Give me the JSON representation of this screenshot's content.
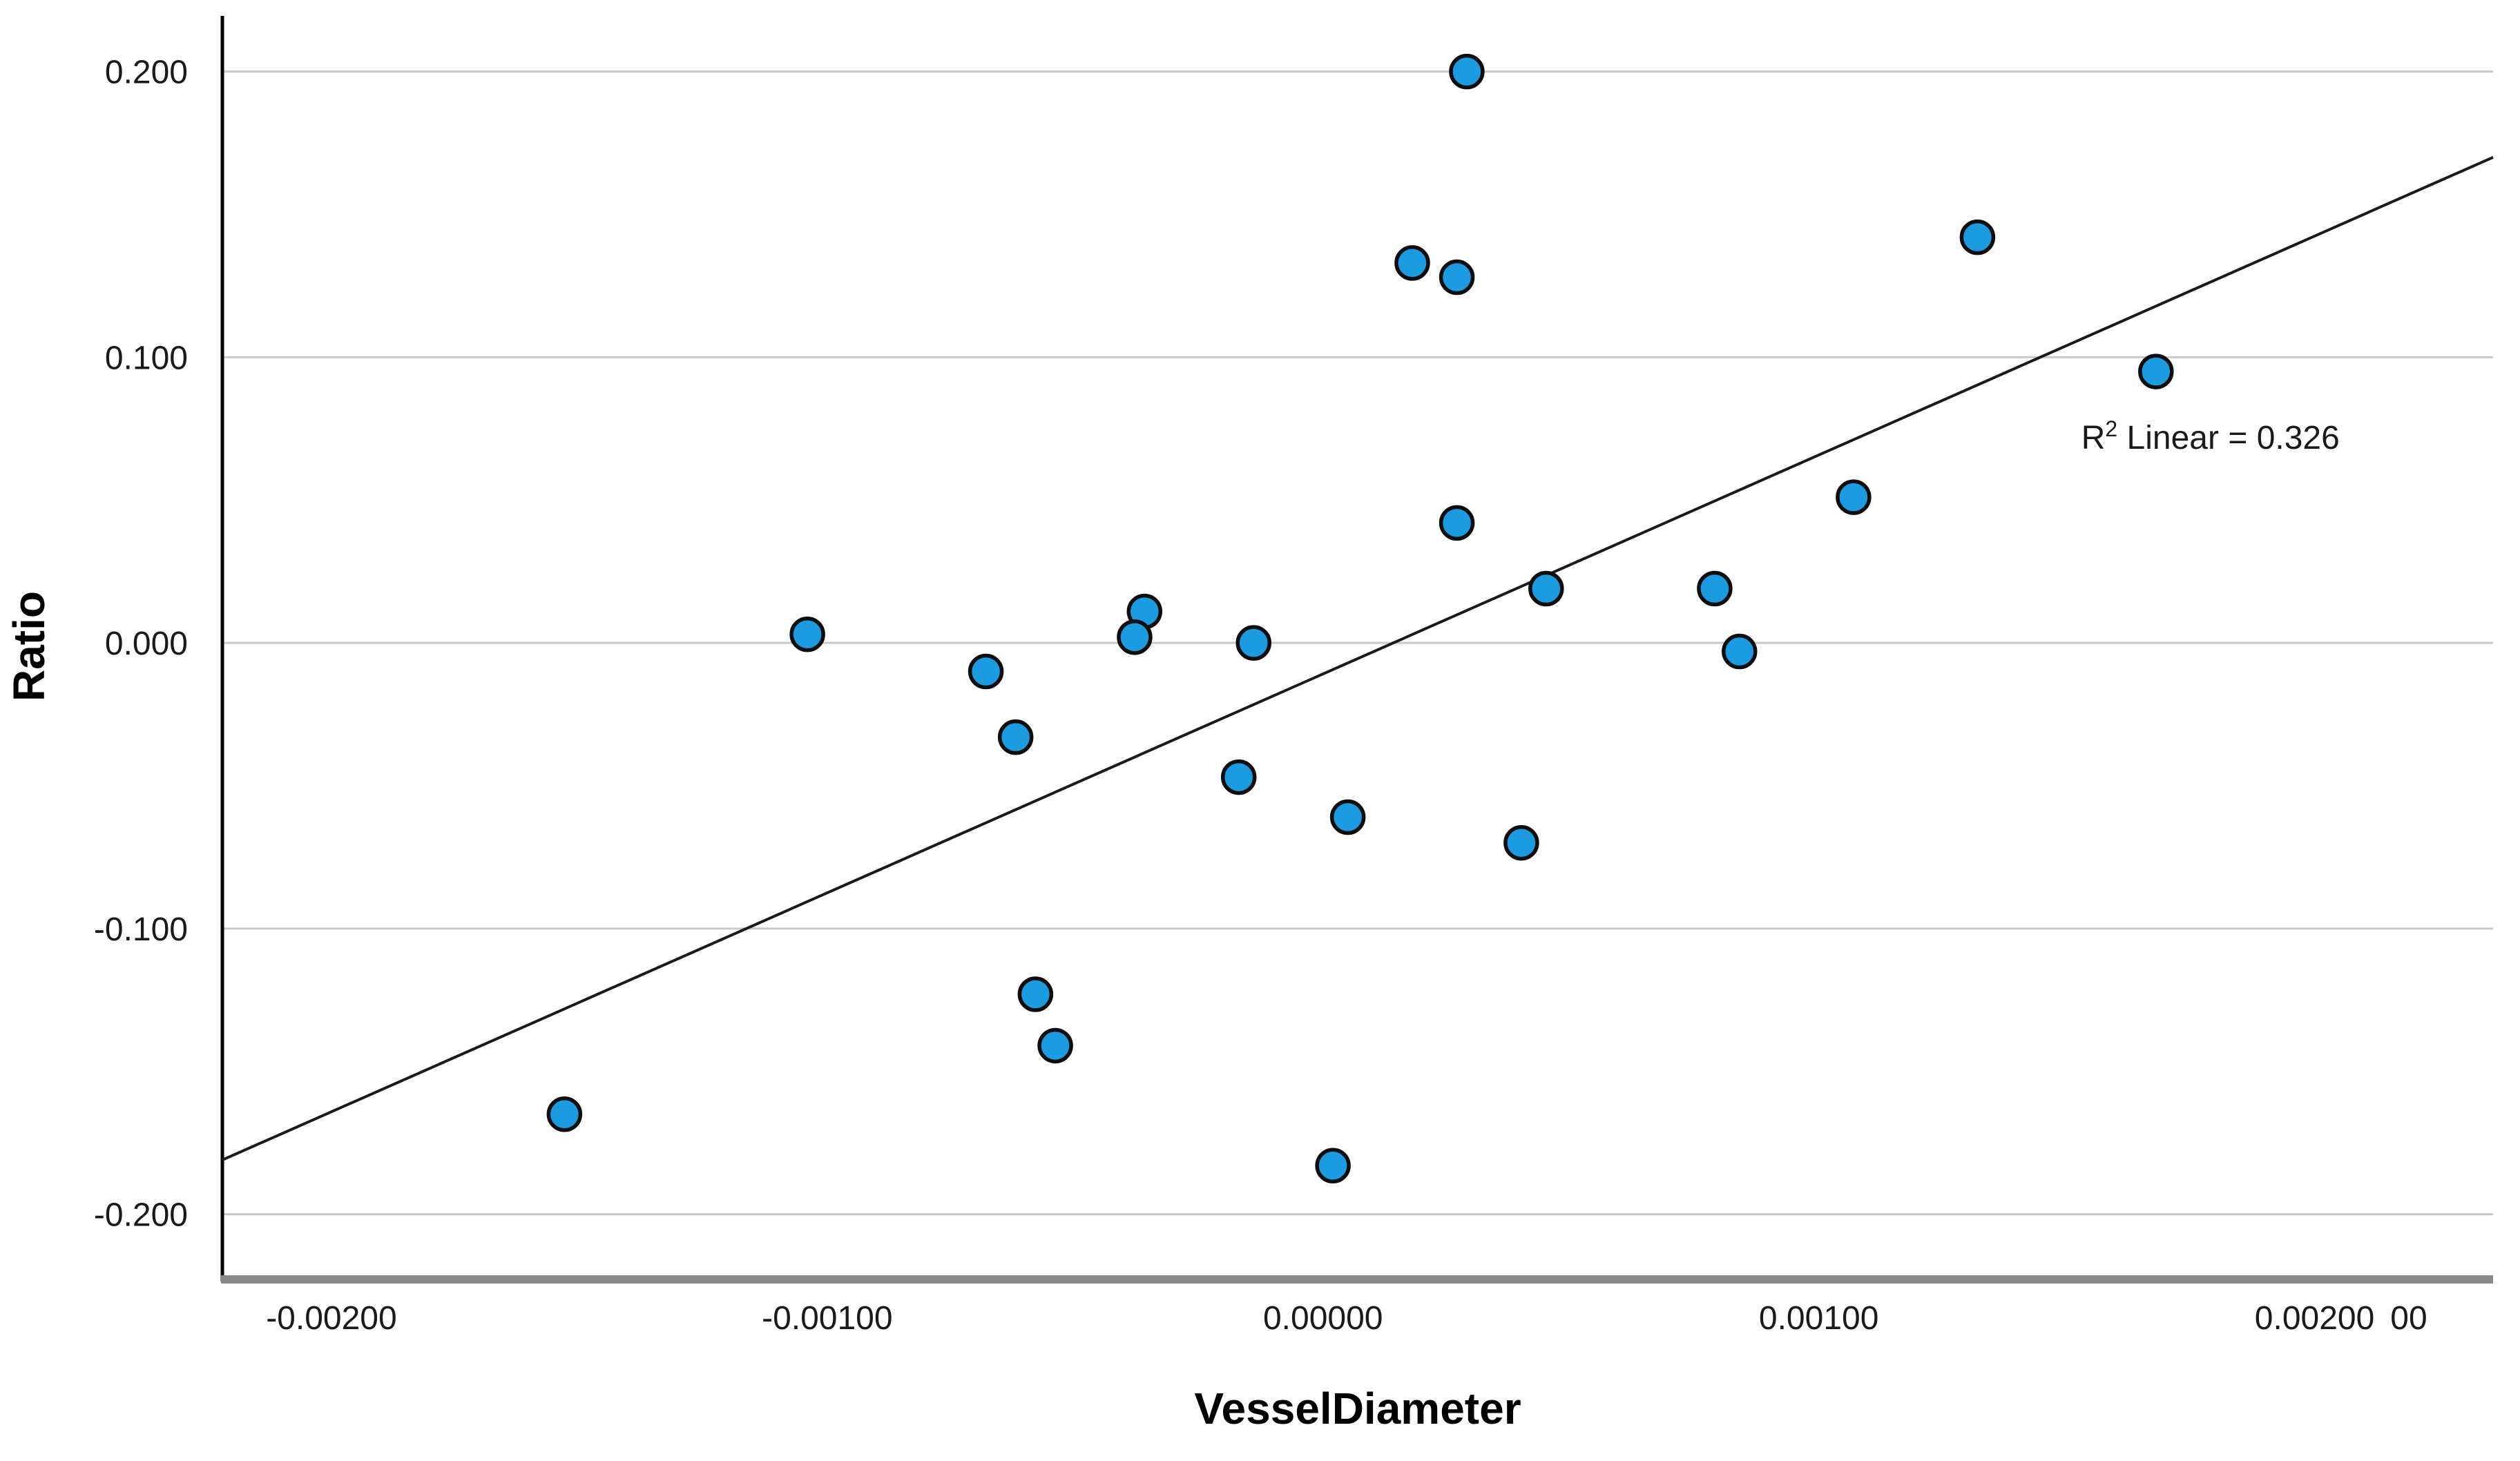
{
  "chart_data": {
    "type": "scatter",
    "title": "",
    "xlabel": "VesselDiameter",
    "ylabel": "Ratio",
    "xlim": [
      -0.00222,
      0.00236
    ],
    "ylim": [
      -0.2221,
      0.2195
    ],
    "grid": "horizontal-only",
    "legend": "none",
    "x_ticks": [
      {
        "value": -0.002,
        "label": "-0.00200"
      },
      {
        "value": -0.001,
        "label": "-0.00100"
      },
      {
        "value": 0.0,
        "label": "0.00000"
      },
      {
        "value": 0.001,
        "label": "0.00100"
      },
      {
        "value": 0.002,
        "label": "0.00200"
      }
    ],
    "x_tick_partial": {
      "value": 0.00219,
      "label": "00"
    },
    "y_ticks": [
      {
        "value": 0.2,
        "label": "0.200"
      },
      {
        "value": 0.1,
        "label": "0.100"
      },
      {
        "value": 0.0,
        "label": "0.000"
      },
      {
        "value": -0.1,
        "label": "-0.100"
      },
      {
        "value": -0.2,
        "label": "-0.200"
      }
    ],
    "points": [
      {
        "x": 0.00029,
        "y": 0.2
      },
      {
        "x": 0.00018,
        "y": 0.133
      },
      {
        "x": 0.00027,
        "y": 0.128
      },
      {
        "x": 0.00132,
        "y": 0.142
      },
      {
        "x": 0.00168,
        "y": 0.095
      },
      {
        "x": 0.00107,
        "y": 0.051
      },
      {
        "x": 0.00079,
        "y": 0.019
      },
      {
        "x": 0.00027,
        "y": 0.042
      },
      {
        "x": 0.00045,
        "y": 0.019
      },
      {
        "x": -0.00104,
        "y": 0.003
      },
      {
        "x": -0.00036,
        "y": 0.011
      },
      {
        "x": -0.00038,
        "y": 0.002
      },
      {
        "x": -0.00014,
        "y": 0.0
      },
      {
        "x": 0.00084,
        "y": -0.003
      },
      {
        "x": 5e-05,
        "y": -0.061
      },
      {
        "x": -0.00017,
        "y": -0.047
      },
      {
        "x": 0.0004,
        "y": -0.07
      },
      {
        "x": -0.00068,
        "y": -0.01
      },
      {
        "x": -0.00062,
        "y": -0.033
      },
      {
        "x": -0.00058,
        "y": -0.123
      },
      {
        "x": -0.00054,
        "y": -0.141
      },
      {
        "x": -0.00153,
        "y": -0.165
      },
      {
        "x": 2e-05,
        "y": -0.183
      }
    ],
    "regression_line": {
      "x1": -0.00222,
      "y1": -0.181,
      "x2": 0.00236,
      "y2": 0.17,
      "r_squared": "0.326"
    },
    "annotation": {
      "r2_prefix": "R",
      "r2_superscript": "2",
      "r2_rest": " Linear = 0.326",
      "x": 0.00179,
      "y": 0.068
    },
    "colors": {
      "point_fill": "#1B9CE0",
      "point_stroke": "#0d0d0d",
      "grid": "#c9c9c9",
      "y_axis": "#000000",
      "x_axis": "#8a8a8a",
      "regression": "#1a1a1a",
      "text": "#1a1a1a",
      "background": "#ffffff"
    }
  }
}
